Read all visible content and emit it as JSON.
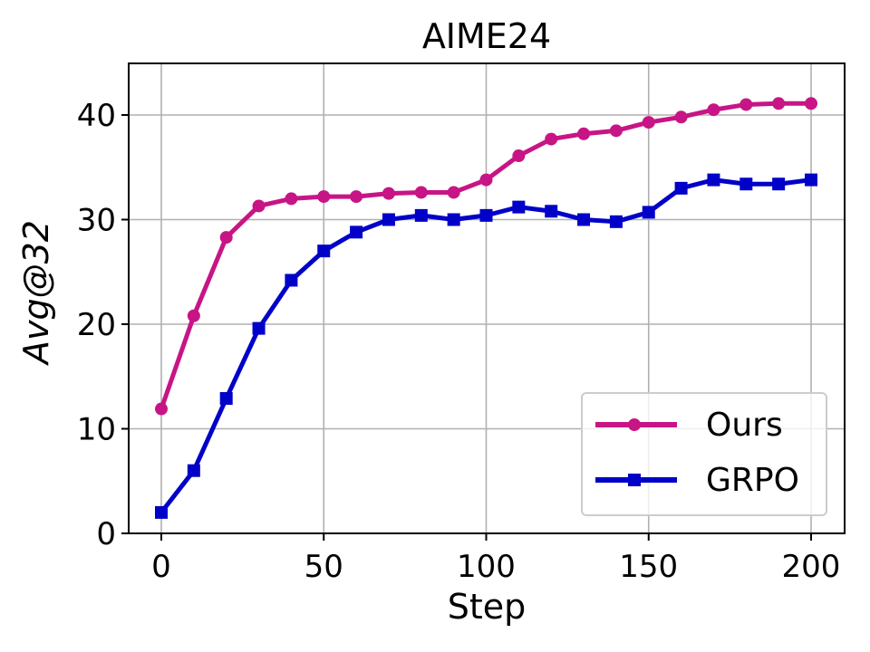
{
  "chart_data": {
    "type": "line",
    "title": "AIME24",
    "xlabel": "Step",
    "ylabel": "Avg@32",
    "x": [
      0,
      10,
      20,
      30,
      40,
      50,
      60,
      70,
      80,
      90,
      100,
      110,
      120,
      130,
      140,
      150,
      160,
      170,
      180,
      190,
      200
    ],
    "series": [
      {
        "name": "Ours",
        "color": "#c71585",
        "marker": "circle",
        "values": [
          11.9,
          20.8,
          28.3,
          31.3,
          32.0,
          32.2,
          32.2,
          32.5,
          32.6,
          32.6,
          33.8,
          36.1,
          37.7,
          38.2,
          38.5,
          39.3,
          39.8,
          40.5,
          41.0,
          41.1,
          41.1
        ]
      },
      {
        "name": "GRPO",
        "color": "#0000c8",
        "marker": "square",
        "values": [
          2.0,
          6.0,
          12.9,
          19.6,
          24.2,
          27.0,
          28.8,
          30.0,
          30.4,
          30.0,
          30.4,
          31.2,
          30.8,
          30.0,
          29.8,
          30.7,
          33.0,
          33.8,
          33.4,
          33.4,
          33.8
        ]
      }
    ],
    "xticks": [
      0,
      50,
      100,
      150,
      200
    ],
    "yticks": [
      0,
      10,
      20,
      30,
      40
    ],
    "xlim": [
      -10,
      210
    ],
    "ylim": [
      0,
      45
    ],
    "grid": true,
    "legend_position": "lower right"
  }
}
